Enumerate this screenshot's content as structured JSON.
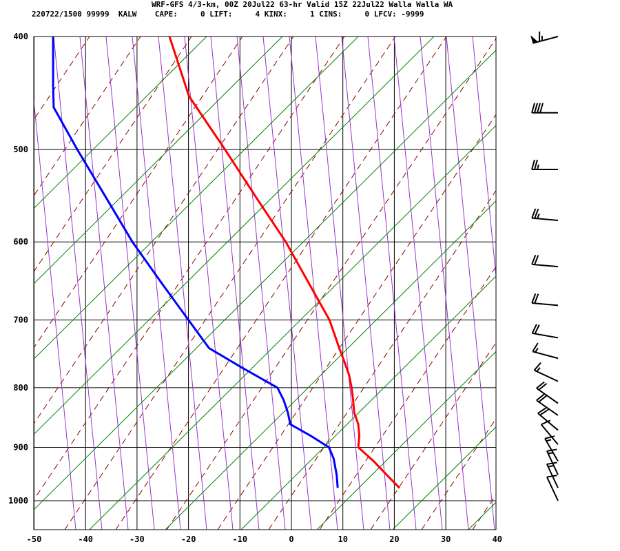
{
  "header": {
    "line1": "WRF-GFS 4/3-km, 00Z 20Jul22 63-hr Valid 15Z 22Jul22 Walla Walla WA",
    "line2": "220722/1500 99999  KALW    CAPE:     0 LIFT:     4 KINX:     1 CINS:     0 LFCV: -9999"
  },
  "chart_data": {
    "type": "line",
    "title": "WRF-GFS 4/3-km, 00Z 20Jul22 63-hr Valid 15Z 22Jul22 Walla Walla WA",
    "x_ticks": [
      -50,
      -40,
      -30,
      -20,
      -10,
      0,
      10,
      20,
      30,
      40
    ],
    "y_ticks": [
      400,
      500,
      600,
      700,
      800,
      900,
      1000
    ],
    "x_range": [
      -50,
      40
    ],
    "y_range": [
      400,
      1050
    ],
    "y_scale": "log",
    "grid": true,
    "colors": {
      "temperature": "#ff0000",
      "dewpoint": "#0000ff",
      "dry_adiabat": "#8b0000",
      "moist_adiabat": "#9933cc",
      "mixing_ratio": "#008000",
      "grid": "#000000"
    },
    "series": [
      {
        "id": "temperature",
        "points": [
          [
            21.0,
            975
          ],
          [
            18.5,
            950
          ],
          [
            16,
            925
          ],
          [
            13.0,
            900
          ],
          [
            13.2,
            880
          ],
          [
            13.0,
            860
          ],
          [
            12.2,
            840
          ],
          [
            12.0,
            820
          ],
          [
            11.7,
            800
          ],
          [
            11.2,
            780
          ],
          [
            10.3,
            760
          ],
          [
            9.3,
            740
          ],
          [
            7.4,
            700
          ],
          [
            3.3,
            650
          ],
          [
            -1.1,
            600
          ],
          [
            -6.8,
            550
          ],
          [
            -12.9,
            500
          ],
          [
            -19.9,
            450
          ],
          [
            -23.7,
            400
          ]
        ]
      },
      {
        "id": "dewpoint",
        "points": [
          [
            9.0,
            975
          ],
          [
            8.8,
            950
          ],
          [
            8.2,
            920
          ],
          [
            7.3,
            900
          ],
          [
            3.8,
            880
          ],
          [
            -0.2,
            860
          ],
          [
            -0.7,
            840
          ],
          [
            -1.5,
            820
          ],
          [
            -2.7,
            800
          ],
          [
            -9.4,
            770
          ],
          [
            -16.0,
            740
          ],
          [
            -20.0,
            700
          ],
          [
            -25.3,
            650
          ],
          [
            -30.9,
            600
          ],
          [
            -36.0,
            550
          ],
          [
            -41.6,
            500
          ],
          [
            -46.2,
            460
          ],
          [
            -46.3,
            440
          ],
          [
            -46.3,
            400
          ]
        ]
      }
    ],
    "wind_barbs": [
      {
        "p": 400,
        "speed_kt": 65,
        "dir_deg": 255
      },
      {
        "p": 465,
        "speed_kt": 40,
        "dir_deg": 270
      },
      {
        "p": 520,
        "speed_kt": 25,
        "dir_deg": 270
      },
      {
        "p": 575,
        "speed_kt": 25,
        "dir_deg": 275
      },
      {
        "p": 630,
        "speed_kt": 20,
        "dir_deg": 275
      },
      {
        "p": 680,
        "speed_kt": 20,
        "dir_deg": 275
      },
      {
        "p": 725,
        "speed_kt": 20,
        "dir_deg": 280
      },
      {
        "p": 755,
        "speed_kt": 15,
        "dir_deg": 285
      },
      {
        "p": 790,
        "speed_kt": 15,
        "dir_deg": 295
      },
      {
        "p": 825,
        "speed_kt": 20,
        "dir_deg": 305
      },
      {
        "p": 845,
        "speed_kt": 20,
        "dir_deg": 305
      },
      {
        "p": 870,
        "speed_kt": 20,
        "dir_deg": 310
      },
      {
        "p": 895,
        "speed_kt": 10,
        "dir_deg": 320
      },
      {
        "p": 925,
        "speed_kt": 15,
        "dir_deg": 330
      },
      {
        "p": 950,
        "speed_kt": 15,
        "dir_deg": 335
      },
      {
        "p": 975,
        "speed_kt": 15,
        "dir_deg": 335
      },
      {
        "p": 1000,
        "speed_kt": 10,
        "dir_deg": 335
      }
    ]
  }
}
